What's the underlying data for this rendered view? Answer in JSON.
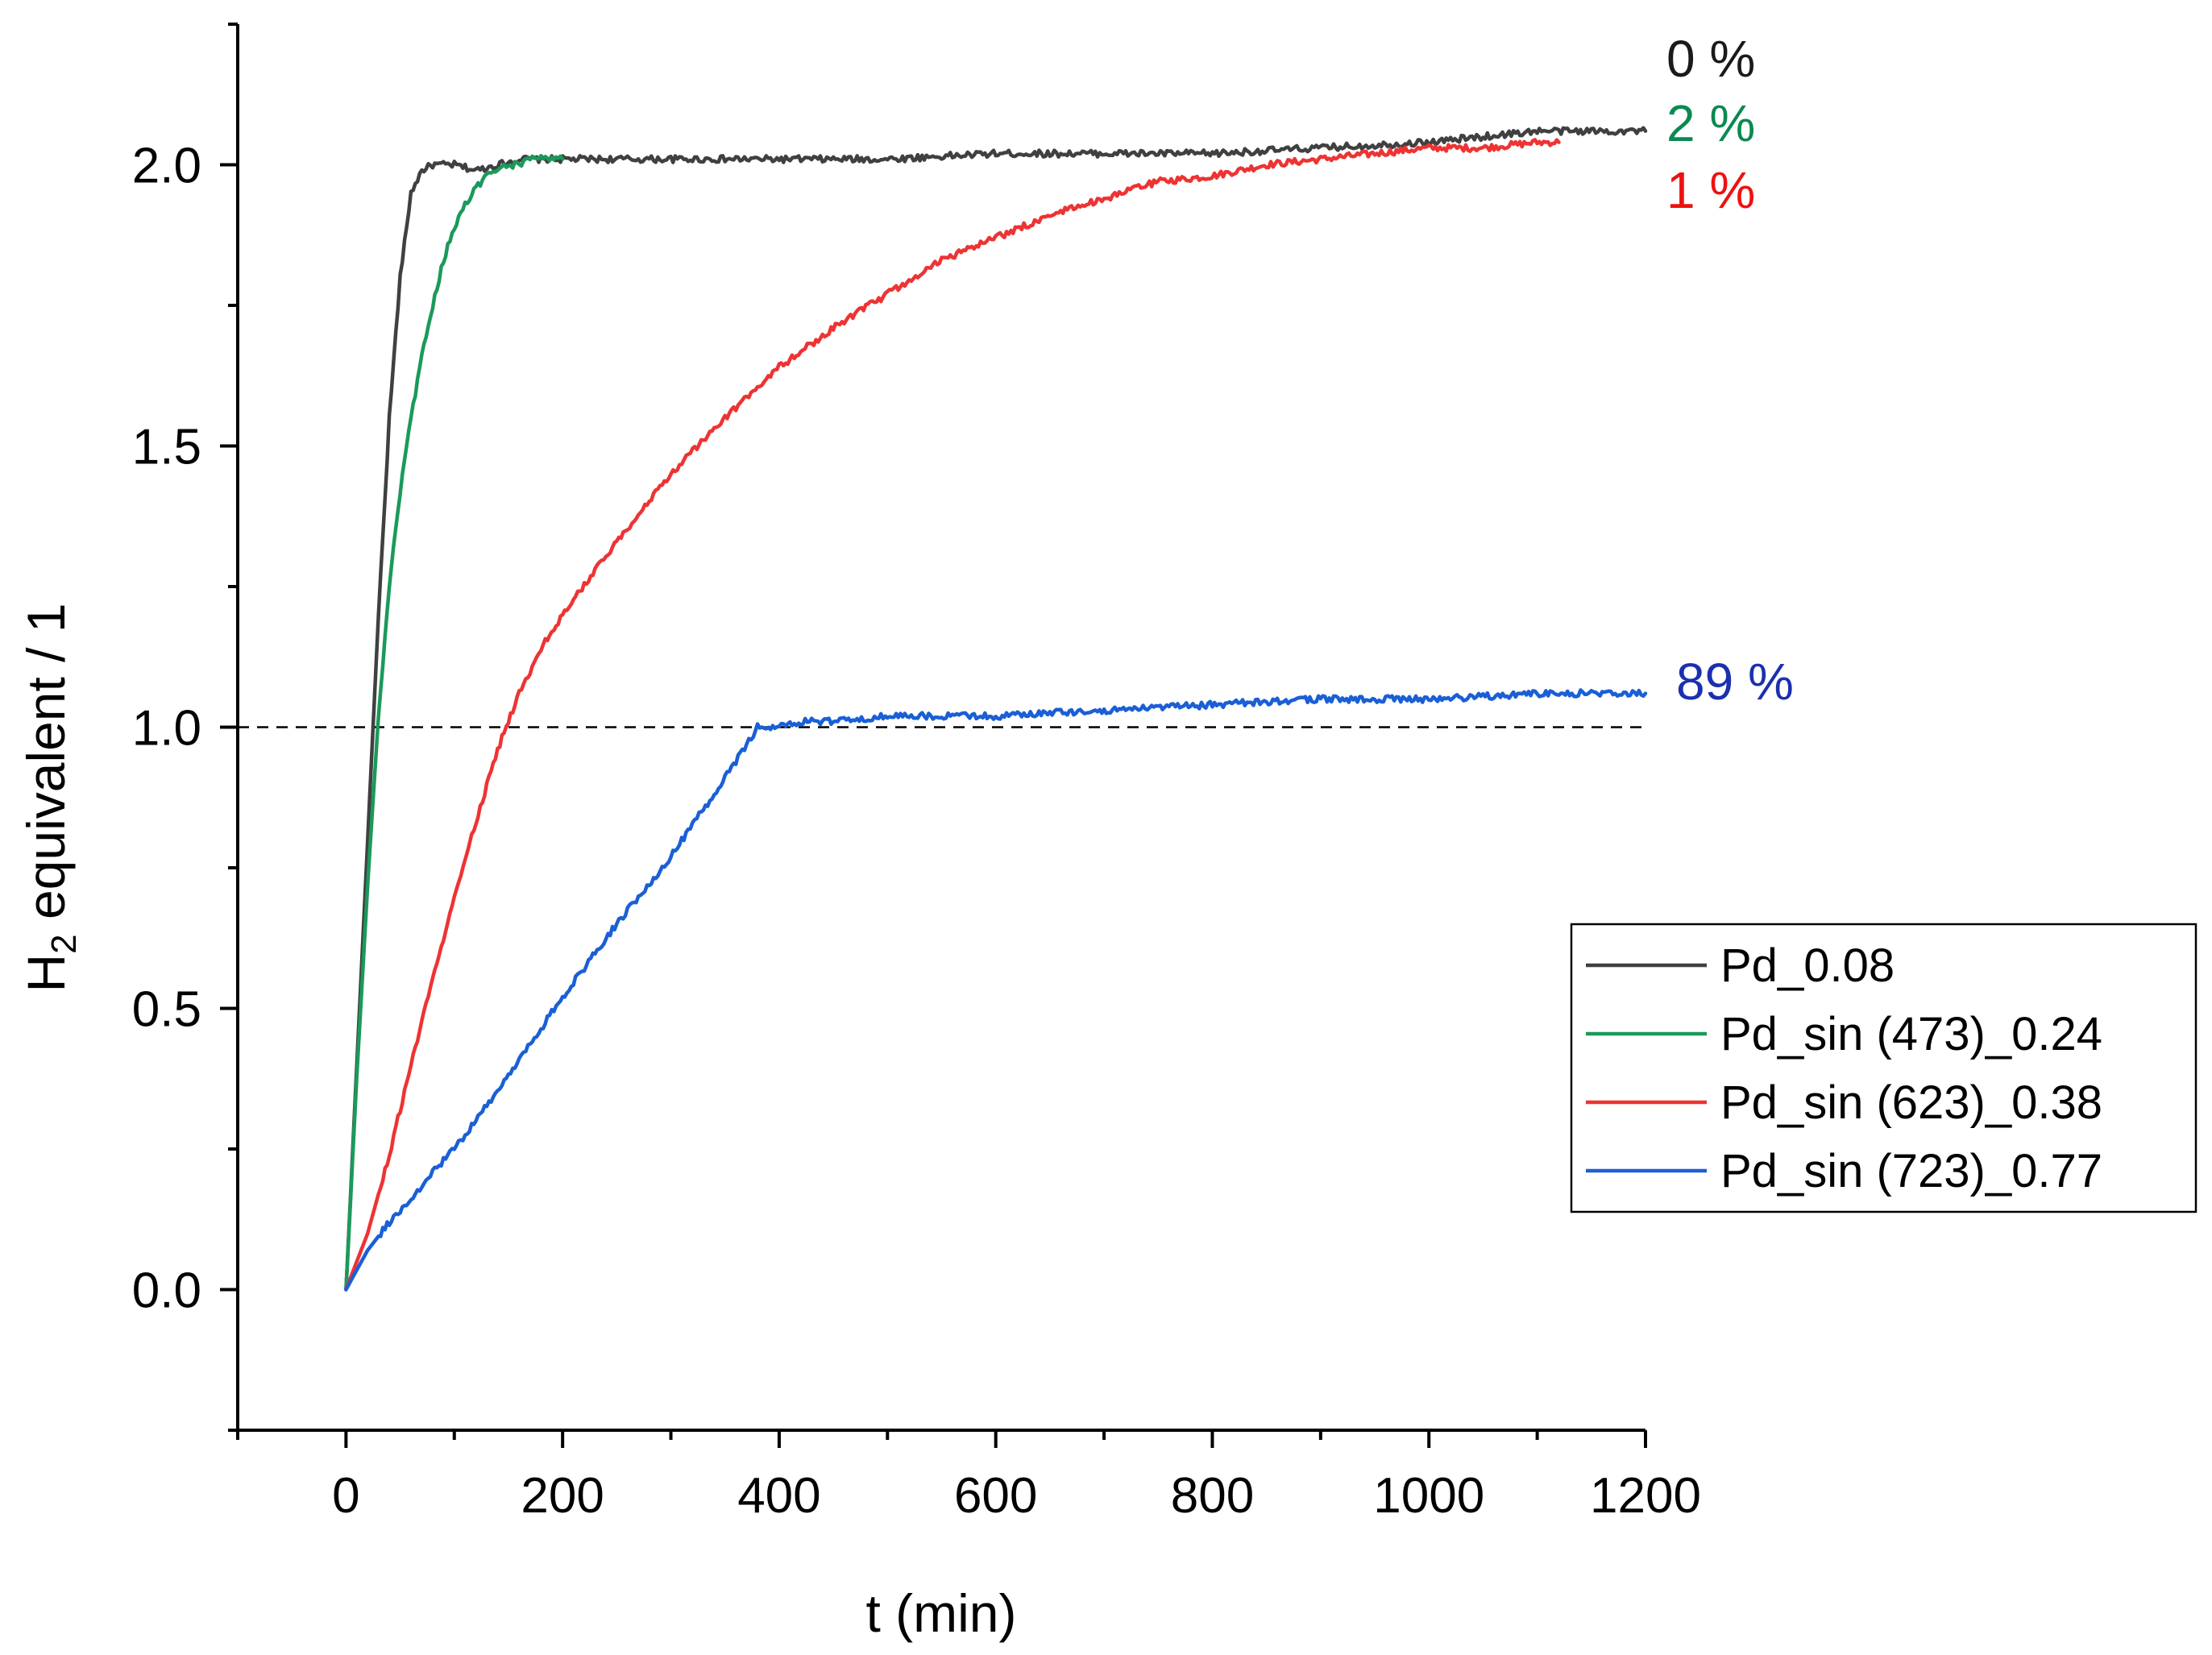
{
  "chart_data": {
    "type": "line",
    "title": "",
    "xlabel": "t (min)",
    "ylabel": {
      "main": "H",
      "subscript": "2",
      "rest": " equivalent / 1"
    },
    "xlim": [
      -100,
      1200
    ],
    "ylim": [
      -0.25,
      2.25
    ],
    "x_ticks": [
      0,
      200,
      400,
      600,
      800,
      1000,
      1200
    ],
    "x_tick_labels": [
      "0",
      "200",
      "400",
      "600",
      "800",
      "1000",
      "1200"
    ],
    "y_ticks": [
      0,
      0.5,
      1,
      1.5,
      2
    ],
    "y_tick_labels": [
      "0.0",
      "0.5",
      "1.0",
      "1.5",
      "2.0"
    ],
    "reference_line": {
      "y": 1.0,
      "style": "dashed",
      "color": "#000000"
    },
    "legend_position": "right",
    "series": [
      {
        "name": "Pd_0.08",
        "color": "#404040",
        "end_label": "0 %",
        "end_label_color": "#1a1a1a",
        "x": [
          0,
          10,
          20,
          30,
          40,
          50,
          60,
          70,
          80,
          100,
          120,
          140,
          160,
          200,
          300,
          400,
          500,
          600,
          700,
          800,
          900,
          1000,
          1050,
          1100,
          1150,
          1200
        ],
        "y": [
          0,
          0.4,
          0.8,
          1.2,
          1.55,
          1.8,
          1.95,
          1.99,
          2.0,
          2.0,
          1.99,
          2.0,
          2.01,
          2.01,
          2.01,
          2.01,
          2.01,
          2.02,
          2.02,
          2.02,
          2.03,
          2.04,
          2.05,
          2.06,
          2.06,
          2.06
        ]
      },
      {
        "name": "Pd_sin (473)_0.24",
        "color": "#1a9a5a",
        "end_label": "2 %",
        "end_label_color": "#0a8a50",
        "x": [
          0,
          10,
          20,
          30,
          40,
          50,
          60,
          70,
          80,
          90,
          100,
          110,
          120,
          130,
          140,
          150,
          160,
          170,
          180,
          190,
          200
        ],
        "y": [
          0,
          0.38,
          0.72,
          1.02,
          1.25,
          1.42,
          1.55,
          1.66,
          1.75,
          1.83,
          1.89,
          1.93,
          1.96,
          1.98,
          1.99,
          2.0,
          2.0,
          2.01,
          2.01,
          2.01,
          2.01
        ]
      },
      {
        "name": "Pd_sin (623)_0.38",
        "color": "#ee3333",
        "end_label": "1 %",
        "end_label_color": "#ee1111",
        "x": [
          0,
          20,
          40,
          60,
          80,
          100,
          120,
          140,
          160,
          180,
          200,
          250,
          300,
          350,
          400,
          450,
          500,
          550,
          600,
          650,
          700,
          750,
          800,
          850,
          900,
          950,
          1000,
          1050,
          1100,
          1120
        ],
        "y": [
          0,
          0.1,
          0.24,
          0.4,
          0.55,
          0.7,
          0.83,
          0.96,
          1.06,
          1.14,
          1.2,
          1.33,
          1.45,
          1.55,
          1.64,
          1.71,
          1.77,
          1.83,
          1.87,
          1.91,
          1.94,
          1.97,
          1.98,
          2.0,
          2.01,
          2.02,
          2.03,
          2.03,
          2.04,
          2.04
        ]
      },
      {
        "name": "Pd_sin (723)_0.77",
        "color": "#1a5fd6",
        "end_label": "89 %",
        "end_label_color": "#1a30b0",
        "x": [
          0,
          20,
          40,
          60,
          80,
          100,
          150,
          200,
          250,
          300,
          350,
          370,
          380,
          400,
          420,
          450,
          500,
          600,
          700,
          800,
          900,
          1000,
          1100,
          1200
        ],
        "y": [
          0,
          0.07,
          0.12,
          0.16,
          0.21,
          0.25,
          0.38,
          0.52,
          0.65,
          0.77,
          0.91,
          0.97,
          1.0,
          1.0,
          1.01,
          1.01,
          1.02,
          1.02,
          1.03,
          1.04,
          1.05,
          1.05,
          1.06,
          1.06
        ]
      }
    ]
  }
}
